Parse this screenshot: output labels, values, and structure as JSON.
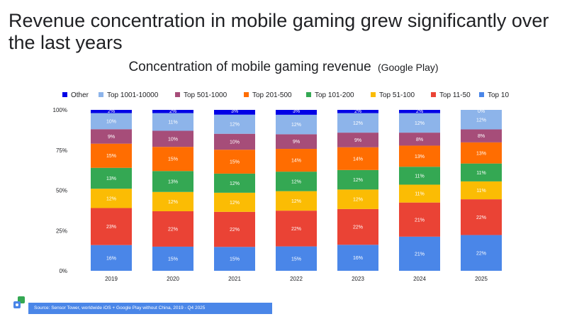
{
  "headline": "Revenue concentration in mobile gaming grew significantly over the last years",
  "chart_title": "Concentration of mobile gaming revenue",
  "chart_subtitle": "(Google Play)",
  "source": "Source: Sensor Tower, worldwide iOS + Google Play without China, 2019 - Q4 2025",
  "colors": {
    "Top 10": "#4a86e8",
    "Top 11-50": "#ea4335",
    "Top 51-100": "#fbbc04",
    "Top 101-200": "#34a853",
    "Top 201-500": "#ff6d01",
    "Top 501-1000": "#a64d79",
    "Top 1001-10000": "#8db4ea",
    "Other": "#0000e6"
  },
  "chart_data": {
    "type": "bar",
    "stacked": true,
    "categories": [
      "2019",
      "2020",
      "2021",
      "2022",
      "2023",
      "2024",
      "2025"
    ],
    "y_ticks": [
      "0%",
      "25%",
      "50%",
      "75%",
      "100%"
    ],
    "ylim": [
      0,
      100
    ],
    "legend": [
      "Other",
      "Top 1001-10000",
      "Top 501-1000",
      "Top 201-500",
      "Top 101-200",
      "Top 51-100",
      "Top 11-50",
      "Top 10"
    ],
    "legend_position": "top",
    "series": [
      {
        "name": "Top 10",
        "values": [
          16,
          15,
          15,
          15,
          16,
          21,
          22
        ]
      },
      {
        "name": "Top 11-50",
        "values": [
          23,
          22,
          22,
          22,
          22,
          21,
          22
        ]
      },
      {
        "name": "Top 51-100",
        "values": [
          12,
          12,
          12,
          12,
          12,
          11,
          11
        ]
      },
      {
        "name": "Top 101-200",
        "values": [
          13,
          13,
          12,
          12,
          12,
          11,
          11
        ]
      },
      {
        "name": "Top 201-500",
        "values": [
          15,
          15,
          15,
          14,
          14,
          13,
          13
        ]
      },
      {
        "name": "Top 501-1000",
        "values": [
          9,
          10,
          10,
          9,
          9,
          8,
          8
        ]
      },
      {
        "name": "Top 1001-10000",
        "values": [
          10,
          11,
          12,
          12,
          12,
          12,
          12
        ]
      },
      {
        "name": "Other",
        "values": [
          2,
          2,
          3,
          3,
          2,
          2,
          0
        ]
      }
    ]
  }
}
